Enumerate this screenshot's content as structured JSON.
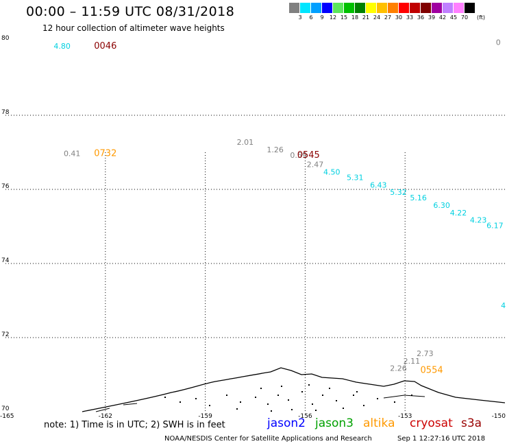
{
  "title": "00:00 – 11:59 UTC 08/31/2018",
  "subtitle": "12 hour collection of altimeter wave heights",
  "colorbar": {
    "unit": "(ft)",
    "labels": [
      "3",
      "6",
      "9",
      "12",
      "15",
      "18",
      "21",
      "24",
      "27",
      "30",
      "33",
      "36",
      "39",
      "42",
      "45",
      "70"
    ],
    "colors": [
      "#808080",
      "#00e5ff",
      "#00a0ff",
      "#0000ff",
      "#5ce65c",
      "#00c000",
      "#008000",
      "#ffff00",
      "#ffc000",
      "#ff8000",
      "#ff0000",
      "#c00000",
      "#800000",
      "#a000a0",
      "#c080ff",
      "#ff80ff",
      "#000000"
    ]
  },
  "axes": {
    "lat_labels": [
      "80",
      "78",
      "76",
      "74",
      "72",
      "70"
    ],
    "lon_labels": [
      "-165",
      "-162",
      "-159",
      "-156",
      "-153",
      "-150"
    ],
    "lat_range": [
      70,
      80
    ],
    "lon_range": [
      -165,
      -150
    ]
  },
  "satellites": [
    {
      "name": "jason2",
      "color": "#0000ff"
    },
    {
      "name": "jason3",
      "color": "#00a000"
    },
    {
      "name": "altika",
      "color": "#ff9900"
    },
    {
      "name": "cryosat",
      "color": "#cc0000"
    },
    {
      "name": "s3a",
      "color": "#990000"
    }
  ],
  "passes": [
    {
      "time": "0046",
      "color": "#8b0000",
      "lat": 79.8,
      "lon": -162.0
    },
    {
      "time": "0732",
      "color": "#ff9900",
      "lat": 76.9,
      "lon": -162.0
    },
    {
      "time": "0545",
      "color": "#8b0000",
      "lat": 76.85,
      "lon": -155.9
    },
    {
      "time": "0554",
      "color": "#ff9900",
      "lat": 71.05,
      "lon": -152.2
    }
  ],
  "wave_heights": [
    {
      "value": "4.80",
      "color": "#00d0e0",
      "lat": 79.8,
      "lon": -163.3
    },
    {
      "value": "0",
      "color": "#808080",
      "lat": 79.9,
      "lon": -150.2
    },
    {
      "value": "0.41",
      "color": "#808080",
      "lat": 76.9,
      "lon": -163.0
    },
    {
      "value": "2.01",
      "color": "#808080",
      "lat": 77.2,
      "lon": -157.8
    },
    {
      "value": "1.26",
      "color": "#808080",
      "lat": 77.0,
      "lon": -156.9
    },
    {
      "value": "0.59",
      "color": "#808080",
      "lat": 76.85,
      "lon": -156.2
    },
    {
      "value": "2.47",
      "color": "#808080",
      "lat": 76.6,
      "lon": -155.7
    },
    {
      "value": "4.50",
      "color": "#00d0e0",
      "lat": 76.4,
      "lon": -155.2
    },
    {
      "value": "5.31",
      "color": "#00d0e0",
      "lat": 76.25,
      "lon": -154.5
    },
    {
      "value": "6.43",
      "color": "#00d0e0",
      "lat": 76.05,
      "lon": -153.8
    },
    {
      "value": "5.32",
      "color": "#00d0e0",
      "lat": 75.85,
      "lon": -153.2
    },
    {
      "value": "5.16",
      "color": "#00d0e0",
      "lat": 75.7,
      "lon": -152.6
    },
    {
      "value": "6.30",
      "color": "#00d0e0",
      "lat": 75.5,
      "lon": -151.9
    },
    {
      "value": "4.22",
      "color": "#00d0e0",
      "lat": 75.3,
      "lon": -151.4
    },
    {
      "value": "4.23",
      "color": "#00d0e0",
      "lat": 75.1,
      "lon": -150.8
    },
    {
      "value": "6.17",
      "color": "#00d0e0",
      "lat": 74.95,
      "lon": -150.3
    },
    {
      "value": "4",
      "color": "#00d0e0",
      "lat": 72.8,
      "lon": -150.05
    },
    {
      "value": "2.73",
      "color": "#808080",
      "lat": 71.5,
      "lon": -152.4
    },
    {
      "value": "2.11",
      "color": "#808080",
      "lat": 71.3,
      "lon": -152.8
    },
    {
      "value": "2.26",
      "color": "#808080",
      "lat": 71.1,
      "lon": -153.2
    }
  ],
  "note": "note: 1) Time is in UTC; 2) SWH is in feet",
  "credit": "NOAA/NESDIS Center for Satellite Applications and Research",
  "timestamp": "Sep  1 12:27:16 UTC 2018"
}
